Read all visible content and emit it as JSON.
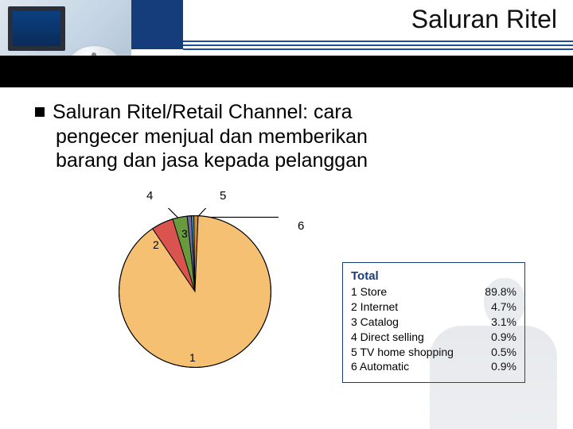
{
  "header": {
    "title": "Saluran Ritel",
    "accent_color": "#153d7b",
    "rule_color": "#1c4e9b"
  },
  "bullet": {
    "line1": "Saluran Ritel/Retail Channel:  cara",
    "line2": "pengecer menjual dan memberikan",
    "line3": "barang dan jasa kepada pelanggan"
  },
  "chart": {
    "type": "pie",
    "background_color": "#ffffff",
    "stroke_color": "#000000",
    "label_fontsize": 15,
    "slices": [
      {
        "id": 1,
        "label": "1",
        "value": 89.8,
        "color": "#f6c073"
      },
      {
        "id": 2,
        "label": "2",
        "value": 4.7,
        "color": "#d9534f"
      },
      {
        "id": 3,
        "label": "3",
        "value": 3.1,
        "color": "#6a9a3e"
      },
      {
        "id": 4,
        "label": "4",
        "value": 0.9,
        "color": "#6c6ca8"
      },
      {
        "id": 5,
        "label": "5",
        "value": 0.5,
        "color": "#4aa0c0"
      },
      {
        "id": 6,
        "label": "6",
        "value": 0.9,
        "color": "#d58a2e"
      }
    ],
    "callouts": {
      "4": "4",
      "5": "5",
      "6": "6"
    },
    "inner_labels": {
      "1": "1",
      "2": "2",
      "3": "3"
    }
  },
  "legend": {
    "header": "Total",
    "border_color": "#1c3c78",
    "rows": [
      {
        "name": "1 Store",
        "pct": "89.8%"
      },
      {
        "name": "2 Internet",
        "pct": "4.7%"
      },
      {
        "name": "3 Catalog",
        "pct": "3.1%"
      },
      {
        "name": "4 Direct selling",
        "pct": "0.9%"
      },
      {
        "name": "5 TV home shopping",
        "pct": "0.5%"
      },
      {
        "name": "6 Automatic",
        "pct": "0.9%"
      }
    ]
  }
}
